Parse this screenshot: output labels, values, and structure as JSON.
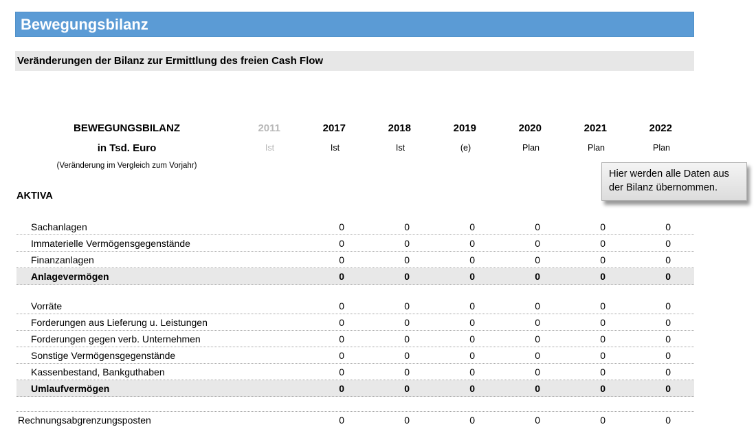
{
  "window": {
    "title": "Bewegungsbilanz",
    "subtitle": "Veränderungen der Bilanz zur Ermittlung des freien Cash Flow"
  },
  "colors": {
    "accent_blue": "#5b9bd5",
    "subtitle_bar_gray": "#e7e7e7",
    "total_row_gray": "#e8e8e8",
    "muted_text": "#b8b8b8"
  },
  "comment": {
    "text": "Hier werden alle Daten aus der Bilanz übernommen."
  },
  "table": {
    "title": "BEWEGUNGSBILANZ",
    "unit": "in Tsd. Euro",
    "note": "(Veränderung im Vergleich zum Vorjahr)",
    "section": "AKTIVA",
    "columns": [
      {
        "year": "2011",
        "type": "Ist",
        "muted": true
      },
      {
        "year": "2017",
        "type": "Ist",
        "muted": false
      },
      {
        "year": "2018",
        "type": "Ist",
        "muted": false
      },
      {
        "year": "2019",
        "type": "(e)",
        "muted": false
      },
      {
        "year": "2020",
        "type": "Plan",
        "muted": false
      },
      {
        "year": "2021",
        "type": "Plan",
        "muted": false
      },
      {
        "year": "2022",
        "type": "Plan",
        "muted": false
      }
    ],
    "rows": [
      {
        "label": "Sachanlagen",
        "style": "item",
        "values": [
          "",
          "0",
          "0",
          "0",
          "0",
          "0",
          "0"
        ]
      },
      {
        "label": "Immaterielle Vermögensgegenstände",
        "style": "item",
        "values": [
          "",
          "0",
          "0",
          "0",
          "0",
          "0",
          "0"
        ]
      },
      {
        "label": "Finanzanlagen",
        "style": "item",
        "values": [
          "",
          "0",
          "0",
          "0",
          "0",
          "0",
          "0"
        ]
      },
      {
        "label": "Anlagevermögen",
        "style": "total",
        "values": [
          "",
          "0",
          "0",
          "0",
          "0",
          "0",
          "0"
        ]
      },
      {
        "style": "spacer"
      },
      {
        "label": "Vorräte",
        "style": "item",
        "values": [
          "",
          "0",
          "0",
          "0",
          "0",
          "0",
          "0"
        ]
      },
      {
        "label": "Forderungen aus Lieferung u. Leistungen",
        "style": "item",
        "values": [
          "",
          "0",
          "0",
          "0",
          "0",
          "0",
          "0"
        ]
      },
      {
        "label": "Forderungen gegen verb. Unternehmen",
        "style": "item",
        "values": [
          "",
          "0",
          "0",
          "0",
          "0",
          "0",
          "0"
        ]
      },
      {
        "label": "Sonstige Vermögensgegenstände",
        "style": "item",
        "values": [
          "",
          "0",
          "0",
          "0",
          "0",
          "0",
          "0"
        ]
      },
      {
        "label": "Kassenbestand, Bankguthaben",
        "style": "item",
        "values": [
          "",
          "0",
          "0",
          "0",
          "0",
          "0",
          "0"
        ]
      },
      {
        "label": "Umlaufvermögen",
        "style": "total",
        "values": [
          "",
          "0",
          "0",
          "0",
          "0",
          "0",
          "0"
        ]
      },
      {
        "style": "spacer-line"
      },
      {
        "label": "Rechnungsabgrenzungsposten",
        "style": "item-flat",
        "values": [
          "",
          "0",
          "0",
          "0",
          "0",
          "0",
          "0"
        ]
      }
    ]
  }
}
